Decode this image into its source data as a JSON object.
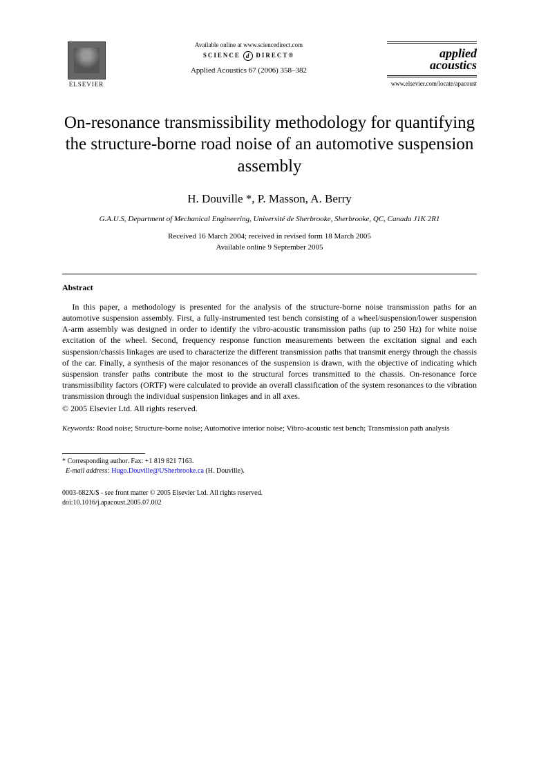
{
  "header": {
    "publisher_name": "ELSEVIER",
    "available_online": "Available online at www.sciencedirect.com",
    "science_direct": "SCIENCE",
    "science_direct2": "DIRECT®",
    "journal_ref": "Applied Acoustics 67 (2006) 358–382",
    "journal_name_line1": "applied",
    "journal_name_line2": "acoustics",
    "journal_url": "www.elsevier.com/locate/apacoust"
  },
  "title": "On-resonance transmissibility methodology for quantifying the structure-borne road noise of an automotive suspension assembly",
  "authors": "H. Douville *, P. Masson, A. Berry",
  "affiliation": "G.A.U.S, Department of Mechanical Engineering, Université de Sherbrooke, Sherbrooke, QC, Canada J1K 2R1",
  "dates": {
    "received": "Received 16 March 2004; received in revised form 18 March 2005",
    "online": "Available online 9 September 2005"
  },
  "abstract": {
    "heading": "Abstract",
    "body": "In this paper, a methodology is presented for the analysis of the structure-borne noise transmission paths for an automotive suspension assembly. First, a fully-instrumented test bench consisting of a wheel/suspension/lower suspension A-arm assembly was designed in order to identify the vibro-acoustic transmission paths (up to 250 Hz) for white noise excitation of the wheel. Second, frequency response function measurements between the excitation signal and each suspension/chassis linkages are used to characterize the different transmission paths that transmit energy through the chassis of the car. Finally, a synthesis of the major resonances of the suspension is drawn, with the objective of indicating which suspension transfer paths contribute the most to the structural forces transmitted to the chassis. On-resonance force transmissibility factors (ORTF) were calculated to provide an overall classification of the system resonances to the vibration transmission through the individual suspension linkages and in all axes.",
    "copyright": "© 2005 Elsevier Ltd. All rights reserved."
  },
  "keywords": {
    "label": "Keywords:",
    "text": " Road noise; Structure-borne noise; Automotive interior noise; Vibro-acoustic test bench; Transmission path analysis"
  },
  "footnote": {
    "corresponding": "* Corresponding author. Fax: +1 819 821 7163.",
    "email_label": "E-mail address:",
    "email": "Hugo.Douville@USherbrooke.ca",
    "email_suffix": " (H. Douville)."
  },
  "footer": {
    "line1": "0003-682X/$ - see front matter © 2005 Elsevier Ltd. All rights reserved.",
    "line2": "doi:10.1016/j.apacoust.2005.07.002"
  }
}
